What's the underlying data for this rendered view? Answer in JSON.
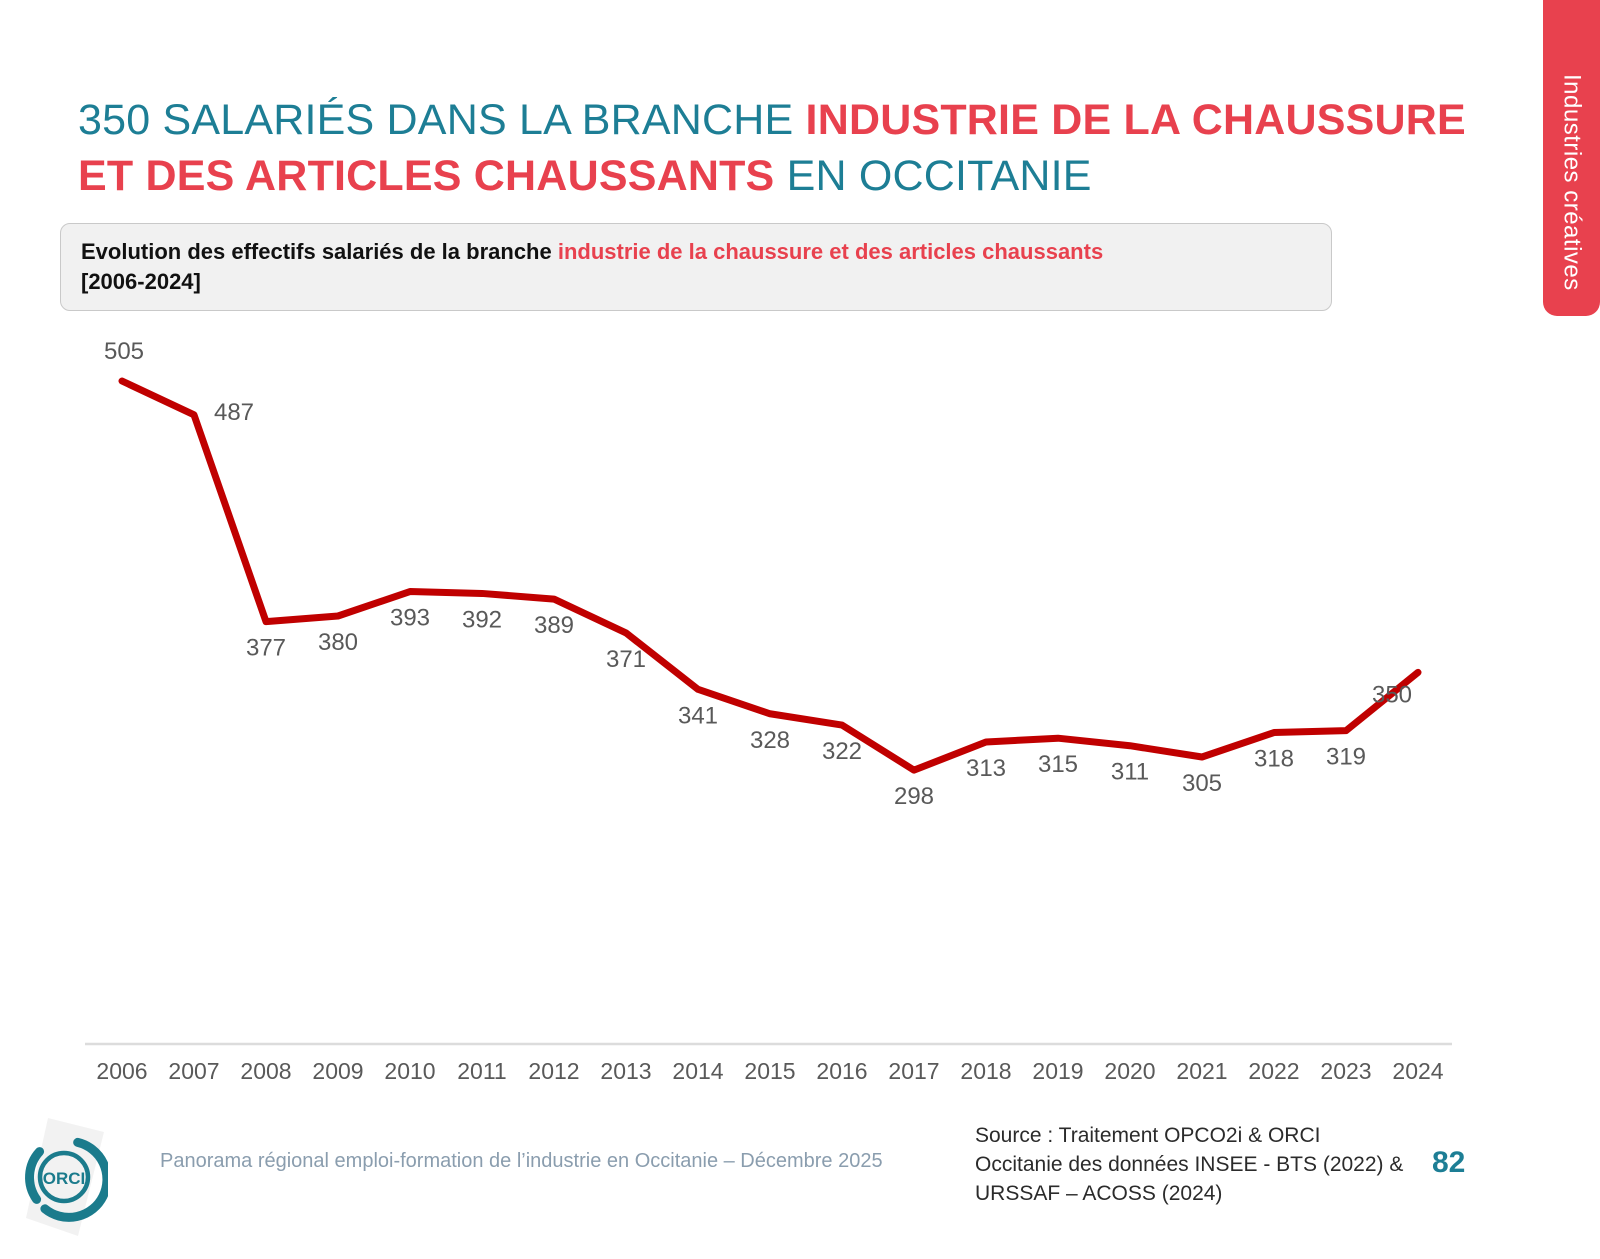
{
  "colors": {
    "teal": "#1D7E95",
    "accent_red": "#E8414E",
    "chart_line_red": "#C00000",
    "label_gray": "#595959",
    "axis_gray": "#DCDCDC",
    "footer_caption": "#8A9DAE",
    "source_text": "#2B2B2B",
    "subtitle_bg": "#F1F1F1",
    "subtitle_border": "#C9C9C9"
  },
  "slide": {
    "title": {
      "line1_teal": "350 SALARIÉS DANS LA BRANCHE ",
      "line1_red": "INDUSTRIE DE LA CHAUSSURE",
      "line2_red": "ET DES ARTICLES CHAUSSANTS",
      "line2_teal": " EN OCCITANIE"
    },
    "subtitle": {
      "part_black": "Evolution des effectifs salariés de la branche ",
      "part_red": "industrie de la chaussure et des articles chaussants",
      "part_bracket": "[2006-2024]"
    },
    "side_tab": {
      "label": "Industries créatives"
    },
    "footer": {
      "logo_text": "ORCI",
      "caption": "Panorama régional emploi-formation de l’industrie en Occitanie – Décembre 2025",
      "source_lines": [
        "Source : Traitement OPCO2i & ORCI",
        "Occitanie des données  INSEE - BTS (2022) &",
        "URSSAF – ACOSS (2024)"
      ],
      "page_number": "82"
    }
  },
  "chart_data": {
    "type": "line",
    "title": "Evolution des effectifs salariés de la branche industrie de la chaussure et des articles chaussants [2006-2024]",
    "x": [
      2006,
      2007,
      2008,
      2009,
      2010,
      2011,
      2012,
      2013,
      2014,
      2015,
      2016,
      2017,
      2018,
      2019,
      2020,
      2021,
      2022,
      2023,
      2024
    ],
    "values": [
      505,
      487,
      377,
      380,
      393,
      392,
      389,
      371,
      341,
      328,
      322,
      298,
      313,
      315,
      311,
      305,
      318,
      319,
      350
    ],
    "data_labels": true,
    "grid": false,
    "legend": false,
    "xlabel": "",
    "ylabel": "",
    "ylim": [
      280,
      520
    ],
    "line_color": "#C00000",
    "label_color": "#595959",
    "axis_line_color": "#DCDCDC"
  }
}
